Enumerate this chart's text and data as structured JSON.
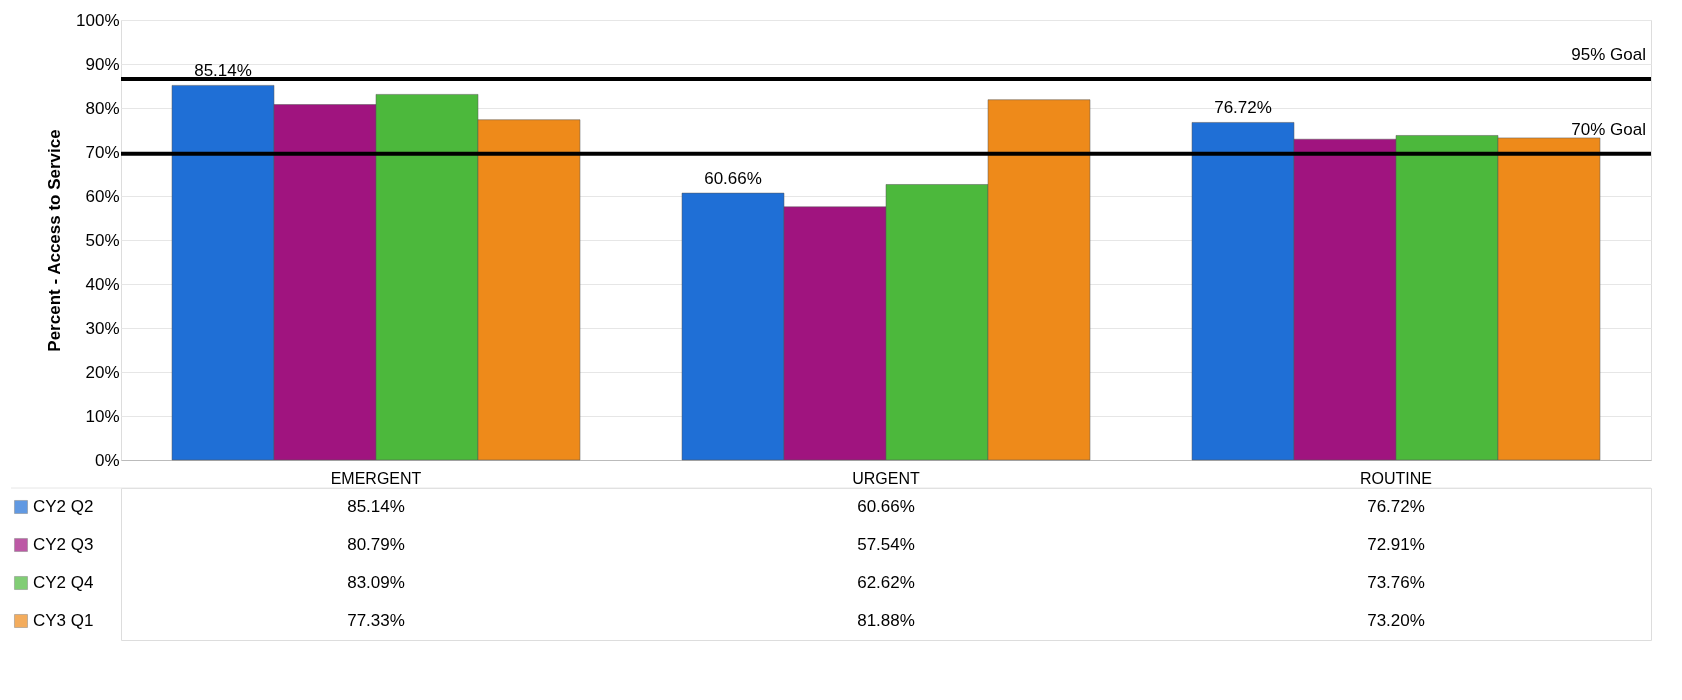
{
  "chart_data": {
    "type": "bar",
    "ylabel": "Percent - Access to Service",
    "categories": [
      "EMERGENT",
      "URGENT",
      "ROUTINE"
    ],
    "series": [
      {
        "name": "CY2 Q2",
        "color": "#1f6fd6",
        "values": [
          85.14,
          60.66,
          76.72
        ],
        "value_labels": [
          "85.14%",
          "60.66%",
          "76.72%"
        ]
      },
      {
        "name": "CY2 Q3",
        "color": "#a0147f",
        "values": [
          80.79,
          57.54,
          72.91
        ],
        "value_labels": [
          "80.79%",
          "57.54%",
          "72.91%"
        ]
      },
      {
        "name": "CY2 Q4",
        "color": "#4cb83c",
        "values": [
          83.09,
          62.62,
          73.76
        ],
        "value_labels": [
          "83.09%",
          "62.62%",
          "73.76%"
        ]
      },
      {
        "name": "CY3 Q1",
        "color": "#ee8a1a",
        "values": [
          77.33,
          81.88,
          73.2
        ],
        "value_labels": [
          "77.33%",
          "81.88%",
          "73.20%"
        ]
      }
    ],
    "ylim": [
      0,
      100
    ],
    "yticks": [
      {
        "value": 0,
        "label": "0%"
      },
      {
        "value": 10,
        "label": "10%"
      },
      {
        "value": 20,
        "label": "20%"
      },
      {
        "value": 30,
        "label": "30%"
      },
      {
        "value": 40,
        "label": "40%"
      },
      {
        "value": 50,
        "label": "50%"
      },
      {
        "value": 60,
        "label": "60%"
      },
      {
        "value": 70,
        "label": "70%"
      },
      {
        "value": 80,
        "label": "80%"
      },
      {
        "value": 90,
        "label": "90%"
      },
      {
        "value": 100,
        "label": "100%"
      }
    ],
    "annotations": [
      "85.14%",
      "60.66%",
      "76.72%"
    ],
    "ref_lines": [
      {
        "axis": "y",
        "value": 86.6,
        "label": "95% Goal",
        "color": "#000000"
      },
      {
        "axis": "y",
        "value": 69.6,
        "label": "70% Goal",
        "color": "#000000"
      }
    ],
    "grid": "y",
    "legend": "bottom left"
  }
}
